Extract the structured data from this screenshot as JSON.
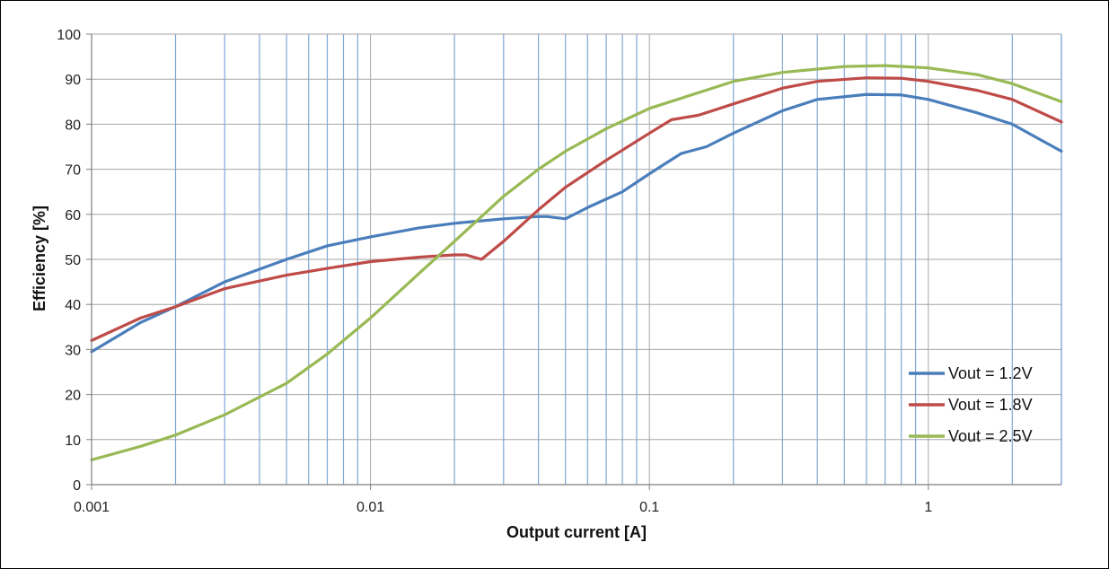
{
  "chart_data": {
    "type": "line",
    "title": "",
    "xlabel": "Output current [A]",
    "ylabel": "Efficiency [%]",
    "x_scale": "log",
    "xlim": [
      0.001,
      3
    ],
    "ylim": [
      0,
      100
    ],
    "x_ticks": [
      0.001,
      0.01,
      0.1,
      1
    ],
    "x_tick_labels": [
      "0.001",
      "0.01",
      "0.1",
      "1"
    ],
    "y_ticks": [
      0,
      10,
      20,
      30,
      40,
      50,
      60,
      70,
      80,
      90,
      100
    ],
    "y_tick_labels": [
      "0",
      "10",
      "20",
      "30",
      "40",
      "50",
      "60",
      "70",
      "80",
      "90",
      "100"
    ],
    "grid": true,
    "legend_position": "bottom-right",
    "series": [
      {
        "name": "Vout = 1.2V",
        "color": "#4a7ebb",
        "points": [
          [
            0.001,
            29.5
          ],
          [
            0.0015,
            36.0
          ],
          [
            0.002,
            39.5
          ],
          [
            0.003,
            45.0
          ],
          [
            0.005,
            50.0
          ],
          [
            0.007,
            53.0
          ],
          [
            0.01,
            55.0
          ],
          [
            0.015,
            57.0
          ],
          [
            0.02,
            58.0
          ],
          [
            0.03,
            59.0
          ],
          [
            0.04,
            59.5
          ],
          [
            0.043,
            59.5
          ],
          [
            0.05,
            59.0
          ],
          [
            0.06,
            61.5
          ],
          [
            0.08,
            65.0
          ],
          [
            0.1,
            69.0
          ],
          [
            0.13,
            73.5
          ],
          [
            0.16,
            75.0
          ],
          [
            0.2,
            78.0
          ],
          [
            0.3,
            83.0
          ],
          [
            0.4,
            85.5
          ],
          [
            0.6,
            86.6
          ],
          [
            0.8,
            86.5
          ],
          [
            1.0,
            85.5
          ],
          [
            1.5,
            82.5
          ],
          [
            2.0,
            80.0
          ],
          [
            3.0,
            74.0
          ]
        ]
      },
      {
        "name": "Vout = 1.8V",
        "color": "#be4b48",
        "points": [
          [
            0.001,
            32.0
          ],
          [
            0.0015,
            37.0
          ],
          [
            0.002,
            39.5
          ],
          [
            0.003,
            43.5
          ],
          [
            0.005,
            46.5
          ],
          [
            0.007,
            48.0
          ],
          [
            0.01,
            49.5
          ],
          [
            0.015,
            50.5
          ],
          [
            0.02,
            51.0
          ],
          [
            0.022,
            51.0
          ],
          [
            0.025,
            50.0
          ],
          [
            0.03,
            54.0
          ],
          [
            0.04,
            61.0
          ],
          [
            0.05,
            66.0
          ],
          [
            0.07,
            72.0
          ],
          [
            0.1,
            78.0
          ],
          [
            0.12,
            81.0
          ],
          [
            0.15,
            82.0
          ],
          [
            0.2,
            84.5
          ],
          [
            0.3,
            88.0
          ],
          [
            0.4,
            89.5
          ],
          [
            0.6,
            90.3
          ],
          [
            0.8,
            90.2
          ],
          [
            1.0,
            89.5
          ],
          [
            1.5,
            87.5
          ],
          [
            2.0,
            85.5
          ],
          [
            3.0,
            80.5
          ]
        ]
      },
      {
        "name": "Vout = 2.5V",
        "color": "#98b954",
        "points": [
          [
            0.001,
            5.5
          ],
          [
            0.0015,
            8.5
          ],
          [
            0.002,
            11.0
          ],
          [
            0.003,
            15.5
          ],
          [
            0.005,
            22.5
          ],
          [
            0.007,
            29.0
          ],
          [
            0.01,
            37.0
          ],
          [
            0.015,
            47.0
          ],
          [
            0.02,
            54.0
          ],
          [
            0.03,
            64.0
          ],
          [
            0.04,
            70.0
          ],
          [
            0.05,
            74.0
          ],
          [
            0.07,
            79.0
          ],
          [
            0.1,
            83.5
          ],
          [
            0.15,
            87.0
          ],
          [
            0.2,
            89.5
          ],
          [
            0.3,
            91.5
          ],
          [
            0.5,
            92.8
          ],
          [
            0.7,
            93.0
          ],
          [
            1.0,
            92.5
          ],
          [
            1.5,
            91.0
          ],
          [
            2.0,
            89.0
          ],
          [
            3.0,
            85.0
          ]
        ]
      }
    ]
  }
}
